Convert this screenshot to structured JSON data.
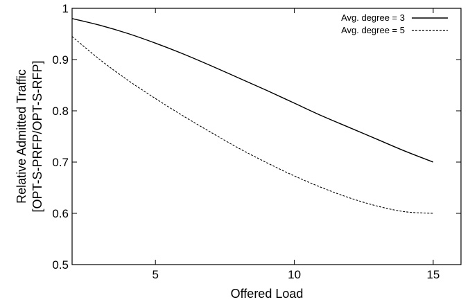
{
  "chart_data": {
    "type": "line",
    "title": "",
    "xlabel": "Offered Load",
    "ylabel": [
      "Relative Admitted Traffic",
      "[OPT-S-PRFP/OPT-S-RFP]"
    ],
    "xlim": [
      2,
      16
    ],
    "ylim": [
      0.5,
      1.0
    ],
    "xticks": [
      5,
      10,
      15
    ],
    "yticks": [
      0.5,
      0.6,
      0.7,
      0.8,
      0.9,
      1.0
    ],
    "ytick_labels": [
      "0.5",
      "0.6",
      "0.7",
      "0.8",
      "0.9",
      "1"
    ],
    "grid": false,
    "legend_position": "top-right",
    "x": [
      2,
      3,
      4,
      5,
      6,
      7,
      8,
      9,
      10,
      11,
      12,
      13,
      14,
      15
    ],
    "series": [
      {
        "name": "Avg. degree = 3",
        "style": "solid",
        "values": [
          0.98,
          0.967,
          0.951,
          0.932,
          0.911,
          0.888,
          0.864,
          0.84,
          0.815,
          0.79,
          0.767,
          0.744,
          0.721,
          0.7
        ]
      },
      {
        "name": "Avg. degree = 5",
        "style": "dashed",
        "values": [
          0.945,
          0.9,
          0.86,
          0.824,
          0.79,
          0.758,
          0.727,
          0.699,
          0.673,
          0.65,
          0.63,
          0.614,
          0.603,
          0.6
        ]
      }
    ]
  }
}
